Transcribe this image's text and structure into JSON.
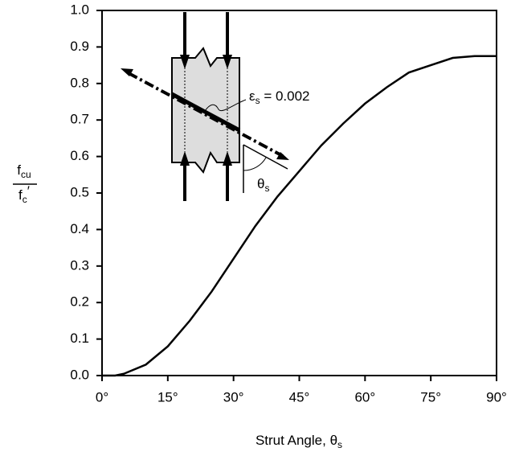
{
  "chart_data": {
    "type": "line",
    "x": [
      0,
      3,
      5,
      10,
      15,
      20,
      25,
      30,
      35,
      40,
      45,
      50,
      55,
      60,
      65,
      70,
      75,
      80,
      85,
      90
    ],
    "series": [
      {
        "color": "#000000",
        "values": [
          0,
          0,
          0.005,
          0.03,
          0.08,
          0.15,
          0.23,
          0.32,
          0.41,
          0.49,
          0.56,
          0.63,
          0.69,
          0.745,
          0.79,
          0.83,
          0.85,
          0.87,
          0.875,
          0.875
        ]
      }
    ],
    "xlim": [
      0,
      90
    ],
    "xticks": [
      {
        "value": 0,
        "label": "0°"
      },
      {
        "value": 15,
        "label": "15°"
      },
      {
        "value": 30,
        "label": "30°"
      },
      {
        "value": 45,
        "label": "45°"
      },
      {
        "value": 60,
        "label": "60°"
      },
      {
        "value": 75,
        "label": "75°"
      },
      {
        "value": 90,
        "label": "90°"
      }
    ],
    "ylim": [
      0,
      1
    ],
    "yticks": [
      {
        "value": 0,
        "label": "0.0"
      },
      0.1,
      0.2,
      0.3,
      0.4,
      0.5,
      0.6,
      0.7,
      0.8,
      0.9,
      {
        "value": 1,
        "label": "1.0"
      }
    ],
    "xlabel": {
      "text": "Strut Angle, θ",
      "sub": "s"
    },
    "ylabel": {
      "numerator": {
        "text": "f",
        "sub": "cu"
      },
      "denominator": {
        "text": "f",
        "sub": "c",
        "mark": "′"
      }
    },
    "annotations": {
      "strain": {
        "text": "ε",
        "sub": "s",
        "after": " = 0.002"
      },
      "angle": {
        "text": "θ",
        "sub": "s"
      }
    },
    "grid": false
  }
}
